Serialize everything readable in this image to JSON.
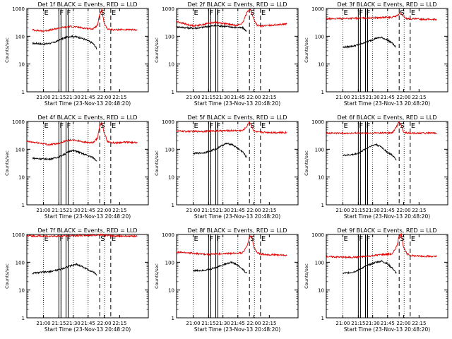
{
  "colors": {
    "events": "#000000",
    "lld": "#e00000",
    "axes": "#000000",
    "background": "#ffffff"
  },
  "common": {
    "ylabel": "Counts/sec",
    "xlabel": "Start Time (23-Nov-13 20:48:20)",
    "x_ticks": [
      "21:00",
      "21:15",
      "21:30",
      "21:45",
      "22:00",
      "22:15"
    ],
    "y_ticks": [
      "1",
      "10",
      "100",
      "1000"
    ],
    "markers": [
      {
        "label": "E",
        "x": 15.0,
        "style": "dotted"
      },
      {
        "label": "F",
        "x": 29.0,
        "style": "solid"
      },
      {
        "label": "F",
        "x": 35.5,
        "style": "solid"
      },
      {
        "label": "",
        "x": 31.0,
        "style": "dotted"
      },
      {
        "label": "",
        "x": 42.0,
        "style": "dotted"
      },
      {
        "label": "",
        "x": 55.5,
        "style": "dotted"
      },
      {
        "label": "S",
        "x": 66.0,
        "style": "dashed"
      },
      {
        "label": "",
        "x": 70.5,
        "style": "dotted"
      },
      {
        "label": "E",
        "x": 76.0,
        "style": "dashed"
      }
    ]
  },
  "chart_data": [
    {
      "type": "line",
      "title": "Det 1f BLACK = Events, RED = LLD",
      "xlim": [
        0,
        110
      ],
      "ylim": [
        1,
        1000
      ],
      "y_scale": "log",
      "series": [
        {
          "name": "Events",
          "x": [
            5,
            10,
            15,
            20,
            25,
            30,
            35,
            40,
            45,
            50,
            55,
            60,
            63.5
          ],
          "values": [
            55,
            55,
            52,
            55,
            60,
            75,
            90,
            100,
            95,
            85,
            70,
            55,
            35
          ]
        },
        {
          "name": "LLD",
          "x": [
            5,
            10,
            15,
            20,
            25,
            30,
            35,
            40,
            45,
            50,
            55,
            60,
            64,
            66,
            68,
            70,
            73,
            76,
            80,
            85,
            90,
            95,
            100
          ],
          "values": [
            170,
            160,
            155,
            165,
            180,
            200,
            215,
            225,
            215,
            200,
            190,
            185,
            250,
            600,
            900,
            300,
            180,
            175,
            170,
            175,
            170,
            170,
            170
          ]
        }
      ]
    },
    {
      "type": "line",
      "title": "Det 2f BLACK = Events, RED = LLD",
      "xlim": [
        0,
        110
      ],
      "ylim": [
        1,
        1000
      ],
      "y_scale": "log",
      "series": [
        {
          "name": "Events",
          "x": [
            0,
            5,
            10,
            15,
            20,
            25,
            30,
            35,
            40,
            45,
            50,
            55,
            60,
            63.5
          ],
          "values": [
            220,
            210,
            200,
            195,
            200,
            215,
            230,
            240,
            235,
            225,
            215,
            205,
            200,
            150
          ]
        },
        {
          "name": "LLD",
          "x": [
            0,
            5,
            10,
            15,
            20,
            25,
            30,
            35,
            40,
            45,
            50,
            55,
            60,
            64,
            67,
            70,
            73,
            76,
            80,
            85,
            90,
            95,
            100
          ],
          "values": [
            340,
            300,
            260,
            240,
            250,
            270,
            300,
            320,
            300,
            280,
            260,
            250,
            300,
            800,
            900,
            400,
            250,
            230,
            240,
            250,
            260,
            270,
            280
          ]
        }
      ]
    },
    {
      "type": "line",
      "title": "Det 3f BLACK = Events, RED = LLD",
      "xlim": [
        0,
        110
      ],
      "ylim": [
        1,
        1000
      ],
      "y_scale": "log",
      "series": [
        {
          "name": "Events",
          "x": [
            15,
            20,
            25,
            30,
            35,
            40,
            45,
            50,
            55,
            60,
            63
          ],
          "values": [
            40,
            42,
            45,
            50,
            60,
            70,
            85,
            90,
            75,
            55,
            40
          ]
        },
        {
          "name": "LLD",
          "x": [
            0,
            10,
            20,
            30,
            40,
            50,
            55,
            60,
            64,
            67,
            70,
            73,
            76,
            80,
            90,
            100
          ],
          "values": [
            420,
            430,
            440,
            450,
            460,
            470,
            480,
            480,
            550,
            700,
            500,
            430,
            420,
            420,
            410,
            400
          ]
        }
      ]
    },
    {
      "type": "line",
      "title": "Det 4f BLACK = Events, RED = LLD",
      "xlim": [
        0,
        110
      ],
      "ylim": [
        1,
        1000
      ],
      "y_scale": "log",
      "series": [
        {
          "name": "Events",
          "x": [
            5,
            10,
            15,
            20,
            25,
            30,
            35,
            40,
            45,
            50,
            55,
            60,
            63.5
          ],
          "values": [
            48,
            46,
            45,
            44,
            48,
            55,
            70,
            90,
            85,
            70,
            60,
            50,
            38
          ]
        },
        {
          "name": "LLD",
          "x": [
            0,
            5,
            10,
            15,
            20,
            25,
            30,
            35,
            40,
            45,
            50,
            55,
            60,
            64,
            66,
            68,
            70,
            73,
            76,
            80,
            85,
            90,
            95,
            100
          ],
          "values": [
            190,
            180,
            170,
            160,
            145,
            155,
            170,
            200,
            215,
            205,
            190,
            175,
            170,
            250,
            700,
            900,
            400,
            190,
            175,
            170,
            175,
            180,
            175,
            170
          ]
        }
      ]
    },
    {
      "type": "line",
      "title": "Det 5f BLACK = Events, RED = LLD",
      "xlim": [
        0,
        110
      ],
      "ylim": [
        1,
        1000
      ],
      "y_scale": "log",
      "series": [
        {
          "name": "Events",
          "x": [
            15,
            20,
            25,
            30,
            35,
            40,
            45,
            50,
            55,
            60,
            63.5
          ],
          "values": [
            70,
            72,
            75,
            85,
            100,
            130,
            160,
            150,
            110,
            80,
            50
          ]
        },
        {
          "name": "LLD",
          "x": [
            0,
            10,
            20,
            30,
            40,
            50,
            55,
            60,
            64,
            66,
            68,
            70,
            73,
            76,
            80,
            90,
            100
          ],
          "values": [
            450,
            440,
            440,
            450,
            460,
            470,
            470,
            470,
            700,
            1000,
            700,
            450,
            420,
            410,
            410,
            400,
            400
          ]
        }
      ]
    },
    {
      "type": "line",
      "title": "Det 6f BLACK = Events, RED = LLD",
      "xlim": [
        0,
        110
      ],
      "ylim": [
        1,
        1000
      ],
      "y_scale": "log",
      "series": [
        {
          "name": "Events",
          "x": [
            15,
            20,
            25,
            30,
            35,
            40,
            45,
            50,
            55,
            60,
            63.5
          ],
          "values": [
            60,
            62,
            65,
            75,
            100,
            130,
            150,
            120,
            80,
            60,
            40
          ]
        },
        {
          "name": "LLD",
          "x": [
            0,
            10,
            20,
            30,
            40,
            50,
            55,
            60,
            64,
            66,
            68,
            70,
            73,
            76,
            80,
            90,
            100
          ],
          "values": [
            380,
            380,
            380,
            380,
            380,
            390,
            390,
            390,
            700,
            1000,
            700,
            400,
            390,
            380,
            380,
            380,
            380
          ]
        }
      ]
    },
    {
      "type": "line",
      "title": "Det 7f BLACK = Events, RED = LLD",
      "xlim": [
        0,
        110
      ],
      "ylim": [
        1,
        1000
      ],
      "y_scale": "log",
      "series": [
        {
          "name": "Events",
          "x": [
            5,
            10,
            15,
            20,
            25,
            30,
            35,
            40,
            45,
            50,
            55,
            60,
            63.5
          ],
          "values": [
            40,
            42,
            44,
            45,
            50,
            55,
            65,
            75,
            85,
            70,
            55,
            45,
            35
          ]
        },
        {
          "name": "LLD",
          "x": [
            0,
            10,
            20,
            30,
            40,
            50,
            60,
            64,
            67,
            70,
            76,
            80,
            90,
            100
          ],
          "values": [
            900,
            880,
            870,
            880,
            900,
            920,
            930,
            950,
            1000,
            930,
            900,
            880,
            880,
            870
          ]
        }
      ]
    },
    {
      "type": "line",
      "title": "Det 8f BLACK = Events, RED = LLD",
      "xlim": [
        0,
        110
      ],
      "ylim": [
        1,
        1000
      ],
      "y_scale": "log",
      "series": [
        {
          "name": "Events",
          "x": [
            15,
            20,
            25,
            30,
            35,
            40,
            45,
            50,
            55,
            60,
            63.5
          ],
          "values": [
            50,
            50,
            52,
            55,
            65,
            75,
            90,
            100,
            80,
            55,
            40
          ]
        },
        {
          "name": "LLD",
          "x": [
            0,
            10,
            20,
            30,
            40,
            50,
            55,
            60,
            64,
            66,
            68,
            70,
            73,
            76,
            80,
            90,
            100
          ],
          "values": [
            230,
            220,
            200,
            195,
            200,
            210,
            215,
            220,
            400,
            800,
            900,
            350,
            220,
            200,
            190,
            185,
            180
          ]
        }
      ]
    },
    {
      "type": "line",
      "title": "Det 9f BLACK = Events, RED = LLD",
      "xlim": [
        0,
        110
      ],
      "ylim": [
        1,
        1000
      ],
      "y_scale": "log",
      "series": [
        {
          "name": "Events",
          "x": [
            15,
            20,
            25,
            30,
            35,
            40,
            45,
            50,
            55,
            60,
            63.5
          ],
          "values": [
            40,
            42,
            45,
            55,
            70,
            85,
            100,
            110,
            90,
            60,
            40
          ]
        },
        {
          "name": "LLD",
          "x": [
            0,
            10,
            20,
            30,
            40,
            50,
            55,
            60,
            64,
            66,
            68,
            70,
            73,
            76,
            80,
            90,
            100
          ],
          "values": [
            160,
            155,
            150,
            155,
            170,
            190,
            195,
            200,
            400,
            900,
            1000,
            350,
            200,
            175,
            170,
            165,
            160
          ]
        }
      ]
    }
  ]
}
